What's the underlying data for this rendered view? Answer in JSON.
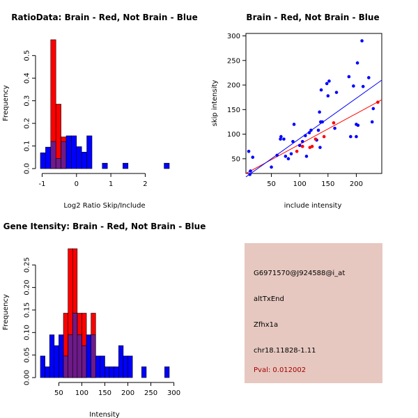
{
  "colors": {
    "red": "#ff0000",
    "blue": "#0000ff",
    "purple": "#6e1a8a",
    "panel_bg": "#e6c8c0",
    "pval_text": "#a40000"
  },
  "chart_data": [
    {
      "type": "bar",
      "subtype": "overlaid-histogram",
      "title": "RatioData: Brain - Red, Not Brain - Blue",
      "xlabel": "Log2 Ratio Skip/Include",
      "ylabel": "Frequency",
      "xlim": [
        -1.05,
        2.7
      ],
      "ylim": [
        0,
        0.57
      ],
      "xticks": [
        -1,
        0,
        1,
        2
      ],
      "xtick_labels": [
        "-1",
        "0",
        "1",
        "2"
      ],
      "yticks": [
        0,
        0.1,
        0.2,
        0.3,
        0.4,
        0.5
      ],
      "ytick_labels": [
        "0.0",
        "0.1",
        "0.2",
        "0.3",
        "0.4",
        "0.5"
      ],
      "bin_width": 0.15,
      "series": [
        {
          "name": "Brain",
          "color": "red",
          "bins": [
            {
              "x0": -0.75,
              "x1": -0.6,
              "value": 0.57
            },
            {
              "x0": -0.6,
              "x1": -0.45,
              "value": 0.285
            },
            {
              "x0": -0.45,
              "x1": -0.3,
              "value": 0.14
            }
          ]
        },
        {
          "name": "Not Brain",
          "color": "blue",
          "bins": [
            {
              "x0": -1.05,
              "x1": -0.9,
              "value": 0.07
            },
            {
              "x0": -0.9,
              "x1": -0.75,
              "value": 0.095
            },
            {
              "x0": -0.75,
              "x1": -0.6,
              "value": 0.12
            },
            {
              "x0": -0.6,
              "x1": -0.45,
              "value": 0.045
            },
            {
              "x0": -0.45,
              "x1": -0.3,
              "value": 0.12
            },
            {
              "x0": -0.3,
              "x1": -0.15,
              "value": 0.145
            },
            {
              "x0": -0.15,
              "x1": 0.0,
              "value": 0.145
            },
            {
              "x0": 0.0,
              "x1": 0.15,
              "value": 0.097
            },
            {
              "x0": 0.15,
              "x1": 0.3,
              "value": 0.073
            },
            {
              "x0": 0.3,
              "x1": 0.45,
              "value": 0.145
            },
            {
              "x0": 0.75,
              "x1": 0.9,
              "value": 0.024
            },
            {
              "x0": 1.35,
              "x1": 1.5,
              "value": 0.024
            },
            {
              "x0": 2.55,
              "x1": 2.7,
              "value": 0.024
            }
          ]
        }
      ]
    },
    {
      "type": "scatter",
      "title": "Brain - Red, Not Brain - Blue",
      "xlabel": "include intensity",
      "ylabel": "skip intensity",
      "xlim": [
        5,
        245
      ],
      "ylim": [
        20,
        305
      ],
      "xticks": [
        50,
        100,
        150,
        200
      ],
      "xtick_labels": [
        "50",
        "100",
        "150",
        "200"
      ],
      "yticks": [
        50,
        100,
        150,
        200,
        250,
        300
      ],
      "ytick_labels": [
        "50",
        "100",
        "150",
        "200",
        "250",
        "300"
      ],
      "series": [
        {
          "name": "Brain",
          "color": "red",
          "points": [
            [
              95,
              65
            ],
            [
              105,
              75
            ],
            [
              118,
              73
            ],
            [
              122,
              75
            ],
            [
              128,
              90
            ],
            [
              143,
              95
            ],
            [
              160,
              123
            ],
            [
              238,
              165
            ]
          ]
        },
        {
          "name": "Not Brain",
          "color": "blue",
          "points": [
            [
              10,
              65
            ],
            [
              12,
              18
            ],
            [
              13,
              25
            ],
            [
              17,
              53
            ],
            [
              50,
              33
            ],
            [
              60,
              57
            ],
            [
              66,
              90
            ],
            [
              67,
              95
            ],
            [
              72,
              90
            ],
            [
              75,
              55
            ],
            [
              80,
              50
            ],
            [
              85,
              60
            ],
            [
              88,
              85
            ],
            [
              90,
              120
            ],
            [
              100,
              77
            ],
            [
              105,
              85
            ],
            [
              110,
              97
            ],
            [
              112,
              55
            ],
            [
              117,
              103
            ],
            [
              120,
              108
            ],
            [
              130,
              88
            ],
            [
              133,
              108
            ],
            [
              135,
              145
            ],
            [
              136,
              73
            ],
            [
              137,
              125
            ],
            [
              138,
              190
            ],
            [
              140,
              125
            ],
            [
              148,
              203
            ],
            [
              150,
              178
            ],
            [
              152,
              208
            ],
            [
              162,
              112
            ],
            [
              165,
              185
            ],
            [
              187,
              217
            ],
            [
              190,
              95
            ],
            [
              195,
              198
            ],
            [
              200,
              95
            ],
            [
              200,
              120
            ],
            [
              202,
              245
            ],
            [
              203,
              118
            ],
            [
              210,
              290
            ],
            [
              212,
              197
            ],
            [
              222,
              215
            ],
            [
              228,
              125
            ],
            [
              230,
              152
            ]
          ]
        }
      ],
      "fit_lines": [
        {
          "name": "Brain fit",
          "color": "red",
          "x": [
            5,
            245
          ],
          "y": [
            20,
            170
          ]
        },
        {
          "name": "Not Brain fit",
          "color": "blue",
          "x": [
            5,
            245
          ],
          "y": [
            13,
            210
          ]
        }
      ]
    },
    {
      "type": "bar",
      "subtype": "overlaid-histogram",
      "title": "Gene Itensity: Brain - Red, Not Brain - Blue",
      "xlabel": "Intensity",
      "ylabel": "Frequency",
      "xlim": [
        10,
        290
      ],
      "ylim": [
        0,
        0.286
      ],
      "xticks": [
        50,
        100,
        150,
        200,
        250,
        300
      ],
      "xtick_labels": [
        "50",
        "100",
        "150",
        "200",
        "250",
        "300"
      ],
      "yticks": [
        0,
        0.05,
        0.1,
        0.15,
        0.2,
        0.25
      ],
      "ytick_labels": [
        "0.00",
        "0.05",
        "0.10",
        "0.15",
        "0.20",
        "0.25"
      ],
      "bin_width": 10,
      "series": [
        {
          "name": "Brain",
          "color": "red",
          "bins": [
            {
              "x0": 60,
              "x1": 70,
              "value": 0.143
            },
            {
              "x0": 70,
              "x1": 80,
              "value": 0.286
            },
            {
              "x0": 80,
              "x1": 90,
              "value": 0.286
            },
            {
              "x0": 90,
              "x1": 100,
              "value": 0.143
            },
            {
              "x0": 100,
              "x1": 110,
              "value": 0.143
            },
            {
              "x0": 110,
              "x1": 120,
              "value": 0
            },
            {
              "x0": 120,
              "x1": 130,
              "value": 0.143
            }
          ]
        },
        {
          "name": "Not Brain",
          "color": "blue",
          "bins": [
            {
              "x0": 10,
              "x1": 20,
              "value": 0.048
            },
            {
              "x0": 20,
              "x1": 30,
              "value": 0.024
            },
            {
              "x0": 30,
              "x1": 40,
              "value": 0.095
            },
            {
              "x0": 40,
              "x1": 50,
              "value": 0.071
            },
            {
              "x0": 50,
              "x1": 60,
              "value": 0.095
            },
            {
              "x0": 60,
              "x1": 70,
              "value": 0.048
            },
            {
              "x0": 70,
              "x1": 80,
              "value": 0.095
            },
            {
              "x0": 80,
              "x1": 90,
              "value": 0.143
            },
            {
              "x0": 90,
              "x1": 100,
              "value": 0.095
            },
            {
              "x0": 100,
              "x1": 110,
              "value": 0.071
            },
            {
              "x0": 110,
              "x1": 120,
              "value": 0.095
            },
            {
              "x0": 120,
              "x1": 130,
              "value": 0.095
            },
            {
              "x0": 130,
              "x1": 140,
              "value": 0.048
            },
            {
              "x0": 140,
              "x1": 150,
              "value": 0.048
            },
            {
              "x0": 150,
              "x1": 160,
              "value": 0.024
            },
            {
              "x0": 160,
              "x1": 170,
              "value": 0.024
            },
            {
              "x0": 170,
              "x1": 180,
              "value": 0.024
            },
            {
              "x0": 180,
              "x1": 190,
              "value": 0.071
            },
            {
              "x0": 190,
              "x1": 200,
              "value": 0.048
            },
            {
              "x0": 200,
              "x1": 210,
              "value": 0.048
            },
            {
              "x0": 230,
              "x1": 240,
              "value": 0.024
            },
            {
              "x0": 280,
              "x1": 290,
              "value": 0.024
            }
          ]
        }
      ]
    }
  ],
  "info_panel": {
    "probe_id": "G6971570@J924588@i_at",
    "event_type": "altTxEnd",
    "gene": "Zfhx1a",
    "location": "chr18.11828-1.11",
    "pval": "Pval: 0.012002"
  }
}
